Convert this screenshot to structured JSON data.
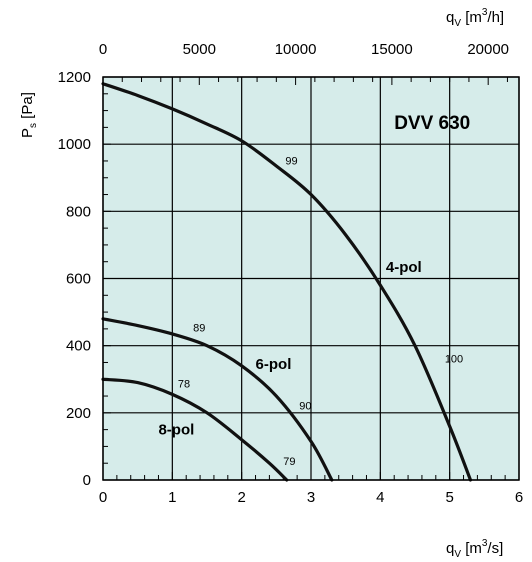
{
  "colors": {
    "plot_background": "#d6ecea",
    "grid": "#000000",
    "curve": "#111111",
    "text": "#000000"
  },
  "chart_data": {
    "type": "line",
    "title": "DVV 630",
    "xlabel": {
      "main": "q",
      "sub": "V",
      "unit_pre": "[m",
      "unit_sup": "3",
      "unit_post": "/s]"
    },
    "x2label": {
      "main": "q",
      "sub": "V",
      "unit_pre": "[m",
      "unit_sup": "3",
      "unit_post": "/h]"
    },
    "ylabel": {
      "main": "P",
      "sub": "s",
      "unit": "[Pa]"
    },
    "xlim": [
      0,
      6
    ],
    "x2lim": [
      0,
      21600
    ],
    "ylim": [
      0,
      1200
    ],
    "x_ticks": [
      "0",
      "1",
      "2",
      "3",
      "4",
      "5",
      "6"
    ],
    "x2_ticks": [
      "0",
      "5000",
      "10000",
      "15000",
      "20000"
    ],
    "y_ticks": [
      "0",
      "200",
      "400",
      "600",
      "800",
      "1000",
      "1200"
    ],
    "grid": true,
    "series": [
      {
        "name": "4-pol",
        "x": [
          0,
          0.5,
          1.0,
          1.5,
          2.0,
          2.5,
          3.0,
          3.5,
          4.0,
          4.5,
          5.0,
          5.3
        ],
        "y": [
          1180,
          1145,
          1105,
          1060,
          1010,
          935,
          850,
          730,
          580,
          400,
          160,
          0
        ]
      },
      {
        "name": "6-pol",
        "x": [
          0,
          0.5,
          1.0,
          1.5,
          2.0,
          2.5,
          3.0,
          3.3
        ],
        "y": [
          480,
          460,
          435,
          400,
          340,
          250,
          115,
          0
        ]
      },
      {
        "name": "8-pol",
        "x": [
          0,
          0.5,
          1.0,
          1.5,
          2.0,
          2.4,
          2.65
        ],
        "y": [
          300,
          290,
          255,
          200,
          120,
          50,
          0
        ]
      }
    ],
    "annotations": [
      {
        "text": "99",
        "x": 2.63,
        "y": 940
      },
      {
        "text": "100",
        "x": 4.93,
        "y": 350
      },
      {
        "text": "89",
        "x": 1.3,
        "y": 442
      },
      {
        "text": "78",
        "x": 1.08,
        "y": 275
      },
      {
        "text": "90",
        "x": 2.83,
        "y": 210
      },
      {
        "text": "79",
        "x": 2.6,
        "y": 45
      }
    ],
    "series_label_positions": [
      {
        "series": "4-pol",
        "x": 4.08,
        "y": 620
      },
      {
        "series": "6-pol",
        "x": 2.2,
        "y": 330
      },
      {
        "series": "8-pol",
        "x": 0.8,
        "y": 135
      }
    ],
    "title_position": {
      "x": 4.2,
      "y": 1045
    }
  }
}
